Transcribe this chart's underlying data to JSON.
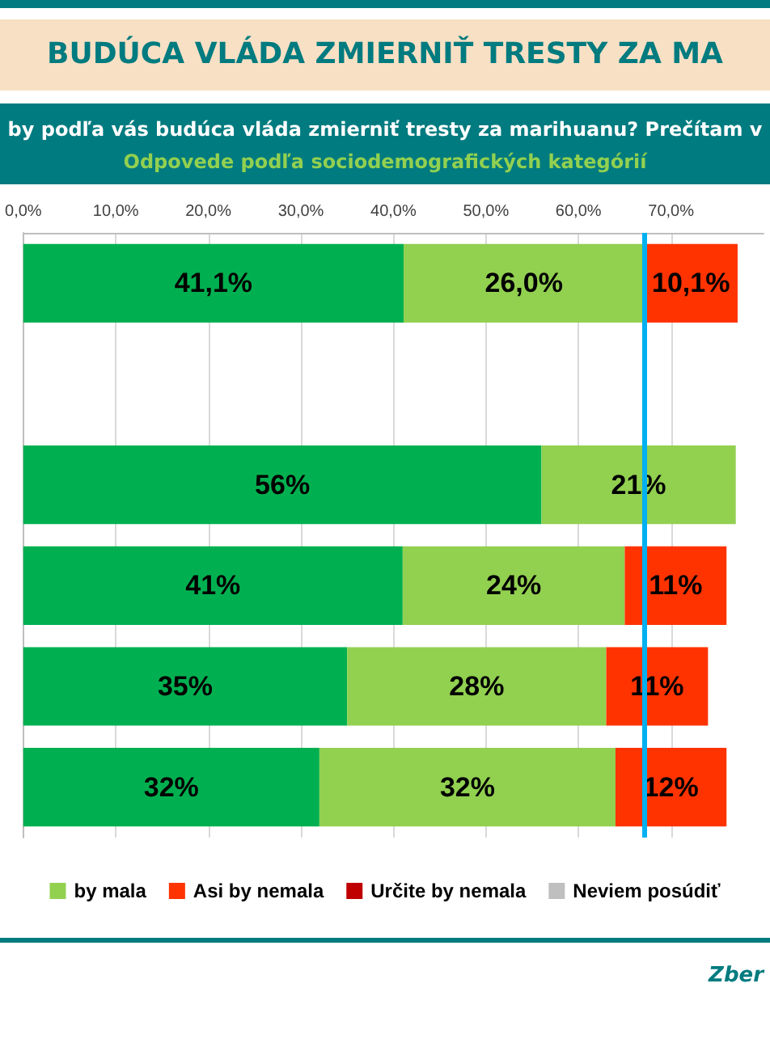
{
  "chart_data": {
    "type": "bar",
    "orientation": "horizontal",
    "stacked": true,
    "title": "BUDÚCA VLÁDA ZMIERNIŤ TRESTY ZA MA",
    "subtitle": "by podľa vás budúca vláda zmierniť tresty za marihuanu? Prečítam v\nOdpovede podľa sociodemografických kategórií",
    "annotations": [
      "Zber"
    ],
    "categories": [
      null,
      null,
      null,
      null,
      null,
      null
    ],
    "series": [
      {
        "color": "#00b050",
        "values": [
          41.1,
          null,
          56,
          41,
          35,
          32
        ],
        "value_labels": [
          "41,1%",
          null,
          "56%",
          "41%",
          "35%",
          "32%"
        ]
      },
      {
        "name": "by mala",
        "color": "#92d050",
        "values": [
          26.0,
          null,
          21,
          24,
          28,
          32
        ],
        "value_labels": [
          "26,0%",
          null,
          "21%",
          "24%",
          "28%",
          "32%"
        ]
      },
      {
        "name": "Asi by nemala",
        "color": "#ff3300",
        "values": [
          10.1,
          null,
          null,
          11,
          11,
          12
        ],
        "value_labels": [
          "10,1%",
          null,
          null,
          "11%",
          "11%",
          "12%"
        ]
      },
      {
        "name": "Určite by nemala",
        "color": "#c00000",
        "values": [
          null,
          null,
          null,
          null,
          null,
          null
        ]
      },
      {
        "name": "Neviem posúdiť",
        "color": "#bfbfbf",
        "values": [
          null,
          null,
          null,
          null,
          null,
          null
        ]
      }
    ],
    "xlim": [
      0,
      80
    ],
    "xticks": [
      {
        "value": 0,
        "label": "0,0%"
      },
      {
        "value": 10,
        "label": "10,0%"
      },
      {
        "value": 20,
        "label": "20,0%"
      },
      {
        "value": 30,
        "label": "30,0%"
      },
      {
        "value": 40,
        "label": "40,0%"
      },
      {
        "value": 50,
        "label": "50,0%"
      },
      {
        "value": 60,
        "label": "60,0%"
      },
      {
        "value": 70,
        "label": "70,0%"
      }
    ],
    "ref_lines": [
      {
        "axis": "x",
        "value": 67.1,
        "color": "#00b0f0"
      }
    ],
    "grid": "x",
    "legend": "bottom",
    "tick_labels": "x"
  }
}
